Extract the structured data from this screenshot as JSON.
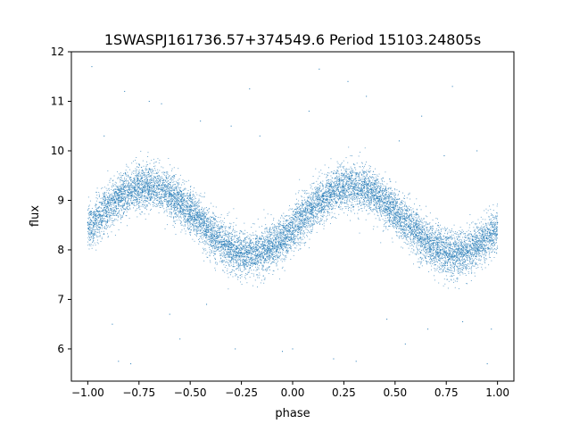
{
  "chart_data": {
    "type": "scatter",
    "title": "1SWASPJ161736.57+374549.6 Period 15103.24805s",
    "xlabel": "phase",
    "ylabel": "flux",
    "xlim": [
      -1.08,
      1.08
    ],
    "ylim": [
      5.35,
      12.0
    ],
    "xticks": [
      -1.0,
      -0.75,
      -0.5,
      -0.25,
      0.0,
      0.25,
      0.5,
      0.75,
      1.0
    ],
    "xtick_labels": [
      "−1.00",
      "−0.75",
      "−0.50",
      "−0.25",
      "0.00",
      "0.25",
      "0.50",
      "0.75",
      "1.00"
    ],
    "yticks": [
      6,
      7,
      8,
      9,
      10,
      11,
      12
    ],
    "ytick_labels": [
      "6",
      "7",
      "8",
      "9",
      "10",
      "11",
      "12"
    ],
    "grid": false,
    "marker_color": "#1f77b4",
    "x_range": [
      -1.0,
      1.0
    ],
    "model": {
      "form": "sinusoid",
      "mean_flux": 8.6,
      "amplitude": 0.68,
      "period_in_phase": 1.0,
      "peak_phase": 0.29,
      "scatter_sigma": 0.22
    },
    "points_x": [
      -1.0,
      -0.9,
      -0.8,
      -0.75,
      -0.7,
      -0.6,
      -0.5,
      -0.4,
      -0.3,
      -0.25,
      -0.2,
      -0.1,
      0.0,
      0.1,
      0.2,
      0.25,
      0.3,
      0.4,
      0.5,
      0.6,
      0.7,
      0.75,
      0.8,
      0.9,
      1.0
    ],
    "points_y": [
      8.55,
      8.95,
      9.22,
      9.27,
      9.28,
      9.13,
      8.82,
      8.4,
      8.05,
      7.95,
      7.92,
      8.07,
      8.38,
      8.81,
      9.2,
      9.27,
      9.28,
      9.1,
      8.72,
      8.3,
      7.98,
      7.93,
      7.92,
      8.1,
      8.55
    ],
    "outliers": [
      [
        -0.98,
        11.7
      ],
      [
        -0.92,
        10.3
      ],
      [
        -0.88,
        6.5
      ],
      [
        -0.85,
        5.75
      ],
      [
        -0.82,
        11.2
      ],
      [
        -0.79,
        5.7
      ],
      [
        -0.7,
        11.0
      ],
      [
        -0.64,
        10.95
      ],
      [
        -0.6,
        6.7
      ],
      [
        -0.55,
        6.2
      ],
      [
        -0.45,
        10.6
      ],
      [
        -0.42,
        6.9
      ],
      [
        -0.3,
        10.5
      ],
      [
        -0.28,
        6.0
      ],
      [
        -0.21,
        11.25
      ],
      [
        -0.16,
        10.3
      ],
      [
        -0.05,
        5.95
      ],
      [
        0.0,
        6.0
      ],
      [
        0.08,
        10.8
      ],
      [
        0.13,
        11.65
      ],
      [
        0.2,
        5.8
      ],
      [
        0.27,
        11.4
      ],
      [
        0.31,
        5.75
      ],
      [
        0.36,
        11.1
      ],
      [
        0.46,
        6.6
      ],
      [
        0.52,
        10.2
      ],
      [
        0.55,
        6.1
      ],
      [
        0.63,
        10.7
      ],
      [
        0.66,
        6.4
      ],
      [
        0.74,
        9.9
      ],
      [
        0.78,
        11.3
      ],
      [
        0.83,
        6.55
      ],
      [
        0.9,
        10.0
      ],
      [
        0.95,
        5.7
      ],
      [
        0.97,
        6.4
      ]
    ]
  }
}
